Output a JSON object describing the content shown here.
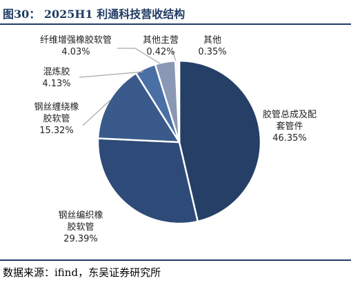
{
  "figure": {
    "title": "图30： 2025H1 利通科技营收结构",
    "source": "数据来源：ifind，东吴证券研究所"
  },
  "chart_data": {
    "type": "pie",
    "title": "",
    "slices": [
      {
        "name": "胶管总成及配套管件",
        "value": 46.35,
        "label": "46.35%",
        "color": "#253f66"
      },
      {
        "name": "钢丝编织橡胶软管",
        "value": 29.39,
        "label": "29.39%",
        "color": "#2e4a78"
      },
      {
        "name": "钢丝缠绕橡胶软管",
        "value": 15.32,
        "label": "15.32%",
        "color": "#395a8a"
      },
      {
        "name": "混炼胶",
        "value": 4.13,
        "label": "4.13%",
        "color": "#4a6fa5"
      },
      {
        "name": "纤维增强橡胶软管",
        "value": 4.03,
        "label": "4.03%",
        "color": "#8a97b5"
      },
      {
        "name": "其他主营",
        "value": 0.42,
        "label": "0.42%",
        "color": "#c4cad8"
      },
      {
        "name": "其他",
        "value": 0.35,
        "label": "0.35%",
        "color": "#dde1ea"
      }
    ]
  }
}
